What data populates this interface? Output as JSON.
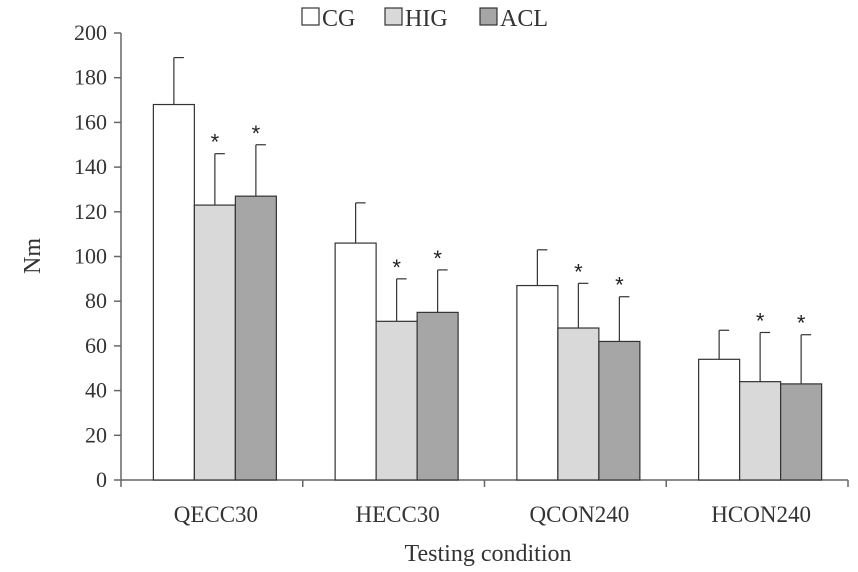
{
  "chart_data": {
    "type": "bar",
    "xlabel": "Testing condition",
    "ylabel": "Nm",
    "ylim": [
      0,
      200
    ],
    "yticks": [
      0,
      20,
      40,
      60,
      80,
      100,
      120,
      140,
      160,
      180,
      200
    ],
    "grid": false,
    "legend_position": "top-center",
    "categories": [
      "QECC30",
      "HECC30",
      "QCON240",
      "HCON240"
    ],
    "series": [
      {
        "name": "CG",
        "color": "#ffffff",
        "values": [
          168,
          106,
          87,
          54
        ],
        "error": [
          21,
          18,
          16,
          13
        ],
        "significant": [
          false,
          false,
          false,
          false
        ]
      },
      {
        "name": "HIG",
        "color": "#d9d9d9",
        "values": [
          123,
          71,
          68,
          44
        ],
        "error": [
          23,
          19,
          20,
          22
        ],
        "significant": [
          true,
          true,
          true,
          true
        ]
      },
      {
        "name": "ACL",
        "color": "#a6a6a6",
        "values": [
          127,
          75,
          62,
          43
        ],
        "error": [
          23,
          19,
          20,
          22
        ],
        "significant": [
          true,
          true,
          true,
          true
        ]
      }
    ],
    "significance_marker": "*"
  }
}
